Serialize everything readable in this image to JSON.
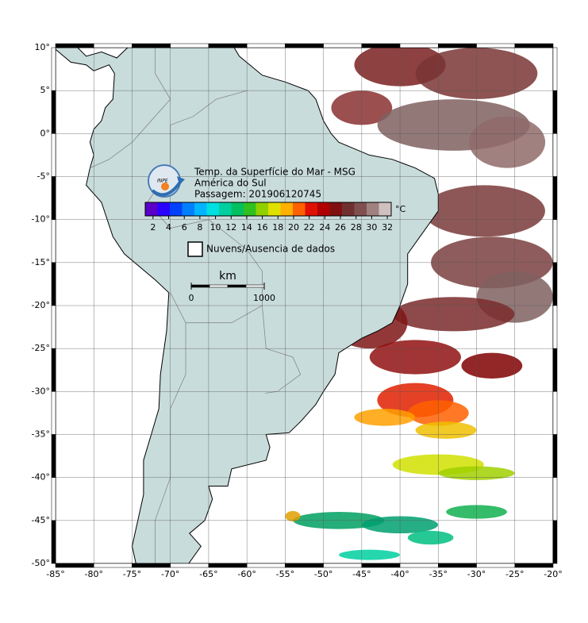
{
  "header": {
    "logo": "INPE",
    "title": "Temp. da Superfície do Mar - MSG",
    "region": "América do Sul",
    "pass": "Passagem: 201906120745"
  },
  "colorbar": {
    "unit": "°C",
    "range": [
      1,
      32.5
    ],
    "ticks": [
      2,
      4,
      6,
      8,
      10,
      12,
      14,
      16,
      18,
      20,
      22,
      24,
      26,
      28,
      30,
      32
    ],
    "colors": [
      "#5a00c8",
      "#2a00ff",
      "#0040ff",
      "#0080ff",
      "#00b4ff",
      "#00e0e0",
      "#00d0a0",
      "#00c060",
      "#30c020",
      "#90d000",
      "#e0e000",
      "#ffb000",
      "#ff6000",
      "#e01000",
      "#b00000",
      "#801010",
      "#703030",
      "#805050",
      "#a08080",
      "#d0c0c0"
    ]
  },
  "legend": {
    "label": "Nuvens/Ausencia de dados"
  },
  "scale": {
    "unit": "km",
    "ticks": [
      0,
      1000
    ]
  },
  "map": {
    "xlim": [
      -85,
      -20
    ],
    "ylim": [
      -50,
      10
    ],
    "xticks": [
      {
        "value": -85,
        "label": "-85°"
      },
      {
        "value": -80,
        "label": "-80°"
      },
      {
        "value": -75,
        "label": "-75°"
      },
      {
        "value": -70,
        "label": "-70°"
      },
      {
        "value": -65,
        "label": "-65°"
      },
      {
        "value": -60,
        "label": "-60°"
      },
      {
        "value": -55,
        "label": "-55°"
      },
      {
        "value": -50,
        "label": "-50°"
      },
      {
        "value": -45,
        "label": "-45°"
      },
      {
        "value": -40,
        "label": "-40°"
      },
      {
        "value": -35,
        "label": "-35°"
      },
      {
        "value": -30,
        "label": "-30°"
      },
      {
        "value": -25,
        "label": "-25°"
      },
      {
        "value": -20,
        "label": "-20°"
      }
    ],
    "yticks": [
      {
        "value": 10,
        "label": "10°"
      },
      {
        "value": 5,
        "label": "5°"
      },
      {
        "value": 0,
        "label": "0°"
      },
      {
        "value": -5,
        "label": "-5°"
      },
      {
        "value": -10,
        "label": "-10°"
      },
      {
        "value": -15,
        "label": "-15°"
      },
      {
        "value": -20,
        "label": "-20°"
      },
      {
        "value": -25,
        "label": "-25°"
      },
      {
        "value": -30,
        "label": "-30°"
      },
      {
        "value": -35,
        "label": "-35°"
      },
      {
        "value": -40,
        "label": "-40°"
      },
      {
        "value": -45,
        "label": "-45°"
      },
      {
        "value": -50,
        "label": "-50°"
      }
    ]
  }
}
